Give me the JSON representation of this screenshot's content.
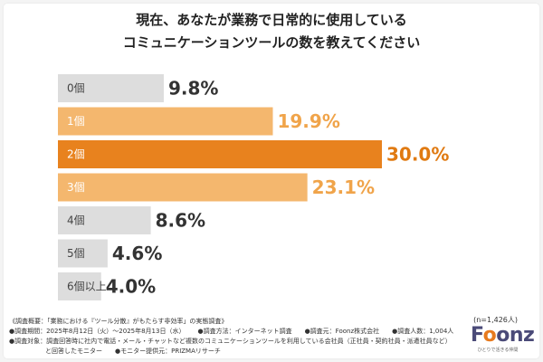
{
  "title_lines": [
    "現在、あなたが業務で日常的に使用している",
    "コミュニケーションツールの数を教えてください"
  ],
  "chart_data": {
    "type": "bar",
    "orientation": "horizontal",
    "categories": [
      "0個",
      "1個",
      "2個",
      "3個",
      "4個",
      "5個",
      "6個以上"
    ],
    "values": [
      9.8,
      19.9,
      30.0,
      23.1,
      8.6,
      4.6,
      4.0
    ],
    "value_labels": [
      "9.8%",
      "19.9%",
      "30.0%",
      "23.1%",
      "8.6%",
      "4.6%",
      "4.0%"
    ],
    "colors": [
      "#dddddd",
      "#f4b76e",
      "#e8821e",
      "#f4b76e",
      "#dddddd",
      "#dddddd",
      "#dddddd"
    ],
    "label_colors": [
      "#444444",
      "#ffffff",
      "#ffffff",
      "#ffffff",
      "#444444",
      "#444444",
      "#444444"
    ],
    "value_colors": [
      "#333333",
      "#f0a44a",
      "#e07a12",
      "#f0a44a",
      "#333333",
      "#333333",
      "#333333"
    ],
    "xlim": [
      0,
      30
    ],
    "grid": false,
    "legend": "none"
  },
  "sample_size": "(n=1,426人)",
  "footer": {
    "line1": "《調査概要：「業務における『ツール分散』がもたらす非効率」の実態調査》",
    "line2_parts": [
      "●調査期間：2025年8月12日（火）～2025年8月13日（水）",
      "●調査方法：インターネット調査",
      "●調査元：Foonz株式会社",
      "●調査人数：1,004人"
    ],
    "line3": "●調査対象：調査回答時に社内で電話・メール・チャットなど複数のコミュニケーションツールを利用している会社員（正社員・契約社員・派遣社員など）",
    "line4_parts": [
      "と回答したモニター",
      "●モニター提供元：PRIZMAリサーチ"
    ]
  },
  "logo": {
    "word_start": "F",
    "word_o": "o",
    "word_end": "onz",
    "tagline": "ひとりで活きる仲間"
  }
}
